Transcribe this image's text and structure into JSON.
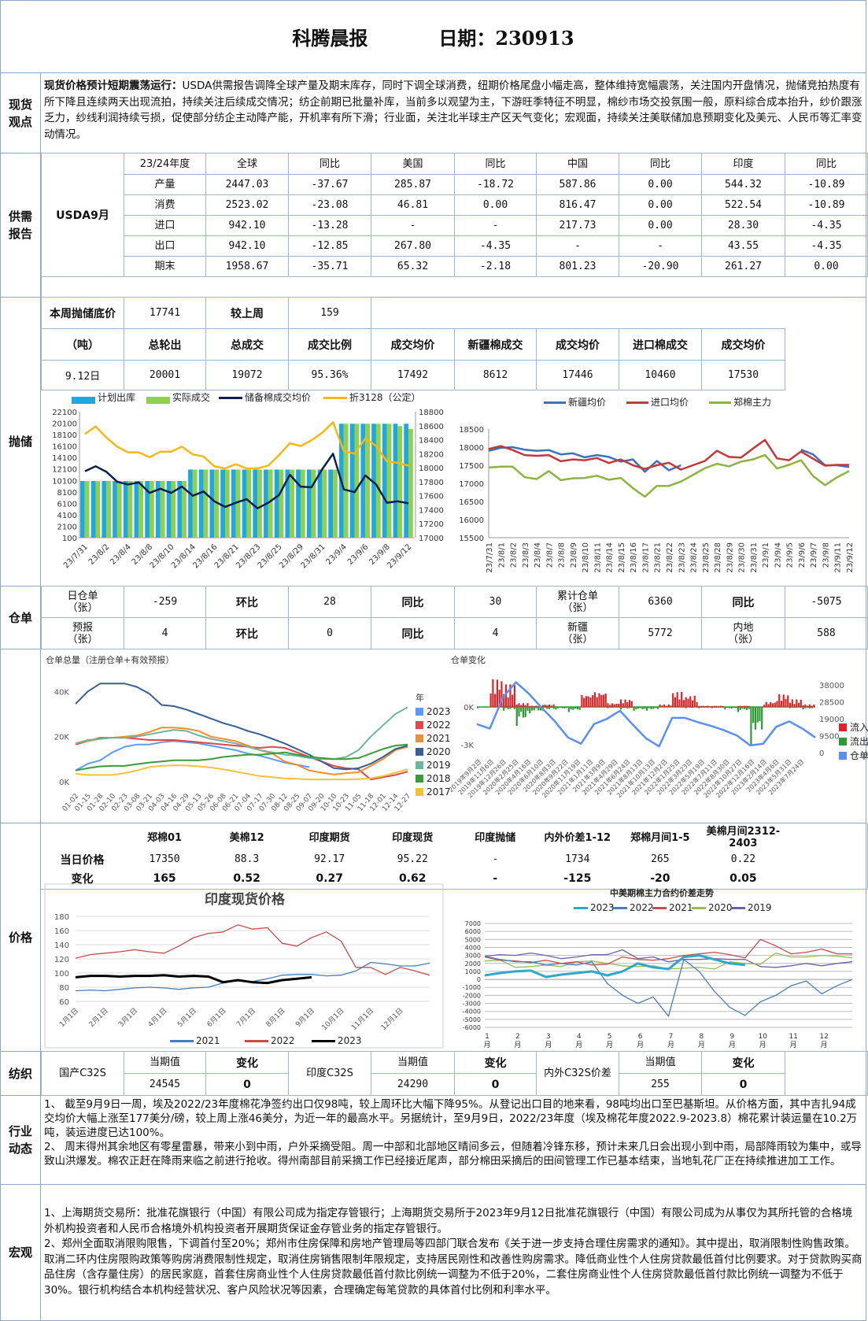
{
  "header": {
    "title": "科腾晨报",
    "date": "日期：230913"
  },
  "labels": {
    "view": "现货\n观点",
    "supply": "供需\n报告",
    "reserve": "抛储",
    "warehouse": "仓单",
    "price": "价格",
    "textile": "纺织",
    "industry": "行业\n动态",
    "macro": "宏观"
  },
  "view": {
    "lead": "现货价格预计短期震荡运行：",
    "text": "USDA供需报告调降全球产量及期末库存，同时下调全球消费，纽期价格尾盘小幅走高，整体维持宽幅震荡，关注国内开盘情况，抛储竞拍热度有所下降且连续两天出现流拍，持续关注后续成交情况；纺企前期已批量补库，当前多以观望为主，下游旺季特征不明显，棉纱市场交投氛围一般，原料综合成本抬升，纱价跟涨乏力，纱线利润持续亏损，促使部分纺企主动降产能，开机率有所下滑；行业面，关注北半球主产区天气变化；宏观面，持续关注美联储加息预期变化及美元、人民币等汇率变动情况。"
  },
  "supply": {
    "source": "USDA9月",
    "headers": [
      "23/24年度",
      "全球",
      "同比",
      "美国",
      "同比",
      "中国",
      "同比",
      "印度",
      "同比"
    ],
    "rows": [
      [
        "产量",
        "2447.03",
        "-37.67",
        "285.87",
        "-18.72",
        "587.86",
        "0.00",
        "544.32",
        "-10.89"
      ],
      [
        "消费",
        "2523.02",
        "-23.08",
        "46.81",
        "0.00",
        "816.47",
        "0.00",
        "522.54",
        "-10.89"
      ],
      [
        "进口",
        "942.10",
        "-13.28",
        "-",
        "-",
        "217.73",
        "0.00",
        "28.30",
        "-4.35"
      ],
      [
        "出口",
        "942.10",
        "-12.85",
        "267.80",
        "-4.35",
        "-",
        "-",
        "43.55",
        "-4.35"
      ],
      [
        "期末",
        "1958.67",
        "-35.71",
        "65.32",
        "-2.18",
        "801.23",
        "-20.90",
        "261.27",
        "0.00"
      ]
    ]
  },
  "reserve": {
    "floor_label": "本周抛储底价",
    "floor": "17741",
    "vs_label": "较上周",
    "vs": "159",
    "headers": [
      "（吨）",
      "总轮出",
      "总成交",
      "成交比例",
      "成交均价",
      "新疆棉成交",
      "成交均价",
      "进口棉成交",
      "成交均价"
    ],
    "row": [
      "9.12日",
      "20001",
      "19072",
      "95.36%",
      "17492",
      "8612",
      "17446",
      "10460",
      "17530"
    ]
  },
  "warehouse": {
    "r1": [
      "日仓单\n（张）",
      "-259",
      "环比",
      "28",
      "同比",
      "30",
      "累计仓单\n（张）",
      "6360",
      "同比",
      "-5075"
    ],
    "r2": [
      "预报\n（张）",
      "4",
      "环比",
      "0",
      "同比",
      "4",
      "新疆\n（张）",
      "5772",
      "内地\n（张）",
      "588"
    ]
  },
  "price": {
    "headers": [
      "",
      "郑棉01",
      "美棉12",
      "印度期货",
      "印度现货",
      "印度抛储",
      "内外价差1-12",
      "郑棉月间1-5",
      "美棉月间2312-2403"
    ],
    "today": [
      "当日价格",
      "17350",
      "88.3",
      "92.17",
      "95.22",
      "-",
      "1734",
      "265",
      "0.22"
    ],
    "change": [
      "变化",
      "165",
      "0.52",
      "0.27",
      "0.62",
      "-",
      "-125",
      "-20",
      "0.05"
    ]
  },
  "textile": {
    "items": [
      {
        "name": "国产C32S",
        "cur_label": "当期值",
        "chg_label": "变化",
        "cur": "24545",
        "chg": "0"
      },
      {
        "name": "印度C32S",
        "cur_label": "当期值",
        "chg_label": "变化",
        "cur": "24290",
        "chg": "0"
      },
      {
        "name": "内外C32S价差",
        "cur_label": "当期值",
        "chg_label": "变化",
        "cur": "255",
        "chg": "0"
      }
    ]
  },
  "industry": {
    "p1": "1、 截至9月9日一周，埃及2022/23年度棉花净签约出口仅98吨，较上周环比大幅下降95%。从登记出口目的地来看，98吨均出口至巴基斯坦。从价格方面，其中吉扎94成交均价大幅上涨至177美分/磅，较上周上涨46美分，为近一年的最高水平。另据统计，至9月9日，2022/23年度（埃及棉花年度2022.9-2023.8）棉花累计装运量在10.2万吨，装运进度已达100%。",
    "p2": "2、 周末得州其余地区有零星雷暴，带来小到中雨，户外采摘受阻。周一中部和北部地区晴间多云，但随着冷锋东移，预计未来几日会出现小到中雨，局部降雨较为集中，或导致山洪爆发。棉农正赶在降雨来临之前进行抢收。得州南部目前采摘工作已经接近尾声，部分棉田采摘后的田间管理工作已基本结束，当地轧花厂正在持续推进加工工作。"
  },
  "macro": {
    "p1": "1、上海期货交易所：批准花旗银行（中国）有限公司成为指定存管银行；上海期货交易所于2023年9月12日批准花旗银行（中国）有限公司成为从事仅为其所托管的合格境外机构投资者和人民币合格境外机构投资者开展期货保证金存管业务的指定存管银行。",
    "p2": "2、郑州全面取消限购限售，下调首付至20%；郑州市住房保障和房地产管理局等四部门联合发布《关于进一步支持合理住房需求的通知》。其中提出，取消限制性购售政策。取消二环内住房限购政策等购房消费限制性规定，取消住房销售限制年限规定，支持居民刚性和改善性购房需求。降低商业性个人住房贷款最低首付比例要求。对于贷款购买商品住房（含存量住房）的居民家庭，首套住房商业性个人住房贷款最低首付款比例统一调整为不低于20%，二套住房商业性个人住房贷款最低首付款比例统一调整为不低于30%。银行机构结合本机构经营状况、客户风险状况等因素，合理确定每笔贷款的具体首付比例和利率水平。"
  },
  "charts": {
    "reserve_auction": {
      "type": "bar",
      "legend": [
        "计划出库",
        "实际成交",
        "储备棉成交均价",
        "折3128（公定）"
      ],
      "colors": [
        "#1ea7e1",
        "#8fd14f",
        "#0d1f4f",
        "#f5b818"
      ],
      "ylim_left": [
        100,
        22100
      ],
      "ylim_right": [
        17000,
        18800
      ],
      "x_labels": [
        "23/7/31",
        "23/8/2",
        "23/8/4",
        "23/8/8",
        "23/8/10",
        "23/8/14",
        "23/8/16",
        "23/8/21",
        "23/8/23",
        "23/8/25",
        "23/8/29",
        "23/8/31",
        "23/9/4",
        "23/9/6",
        "23/9/8",
        "23/9/12"
      ],
      "planned": [
        10000,
        10000,
        10000,
        10000,
        10000,
        10000,
        10000,
        10000,
        10000,
        10000,
        12000,
        12000,
        12000,
        12000,
        12000,
        12000,
        12000,
        12000,
        12000,
        12000,
        12000,
        12000,
        12000,
        12000,
        20000,
        20000,
        20000,
        20000,
        20000,
        20000,
        20000
      ],
      "actual": [
        10000,
        10000,
        10000,
        10000,
        10000,
        10000,
        10000,
        10000,
        10000,
        10000,
        12000,
        12000,
        12000,
        12000,
        12000,
        12000,
        12000,
        12000,
        12000,
        12000,
        12000,
        12000,
        12000,
        12000,
        20000,
        20000,
        20000,
        20000,
        20000,
        19600,
        19072
      ],
      "avg_price": [
        17950,
        18020,
        17940,
        17800,
        17760,
        17790,
        17640,
        17700,
        17640,
        17730,
        17600,
        17660,
        17520,
        17440,
        17500,
        17550,
        17420,
        17500,
        17610,
        17900,
        17730,
        17720,
        17980,
        18200,
        17690,
        17650,
        17890,
        17760,
        17500,
        17520,
        17492
      ],
      "price_3128": [
        18480,
        18590,
        18430,
        18300,
        18220,
        18220,
        18150,
        18230,
        18230,
        18300,
        18190,
        18160,
        18020,
        17990,
        18050,
        17990,
        17990,
        18030,
        18180,
        18350,
        18310,
        18390,
        18500,
        18650,
        18240,
        18200,
        18420,
        18310,
        18090,
        18070,
        18030
      ]
    },
    "avg_prices": {
      "type": "line",
      "legend": [
        "新疆均价",
        "进口均价",
        "郑棉主力"
      ],
      "colors": [
        "#3f73b8",
        "#c0393b",
        "#8db43f"
      ],
      "ylim": [
        15500,
        18500
      ],
      "x": [
        "23/7/31",
        "23/8/1",
        "23/8/2",
        "23/8/3",
        "23/8/4",
        "23/8/7",
        "23/8/8",
        "23/8/9",
        "23/8/10",
        "23/8/11",
        "23/8/14",
        "23/8/15",
        "23/8/16",
        "23/8/17",
        "23/8/21",
        "23/8/22",
        "23/8/23",
        "23/8/24",
        "23/8/25",
        "23/8/28",
        "23/8/29",
        "23/8/30",
        "23/8/31",
        "23/9/1",
        "23/9/4",
        "23/9/5",
        "23/9/6",
        "23/9/7",
        "23/9/8",
        "23/9/11",
        "23/9/12"
      ],
      "series": [
        [
          17900,
          17980,
          18000,
          17930,
          17900,
          17920,
          17800,
          17830,
          17720,
          17780,
          17730,
          17600,
          17660,
          17320,
          17620,
          17360,
          17500,
          null,
          null,
          null,
          null,
          null,
          null,
          null,
          null,
          null,
          17930,
          17800,
          17500,
          17500,
          17450
        ],
        [
          17950,
          18030,
          17920,
          17780,
          17760,
          17780,
          17610,
          17660,
          17640,
          17700,
          17560,
          17660,
          17500,
          17400,
          17500,
          17570,
          17380,
          17500,
          17620,
          17900,
          17730,
          17710,
          17960,
          18200,
          17690,
          17640,
          17880,
          17680,
          17490,
          17510,
          17510
        ],
        [
          17440,
          17460,
          17460,
          17170,
          17120,
          17340,
          17090,
          17140,
          17150,
          17210,
          17100,
          17150,
          16870,
          16630,
          16930,
          16930,
          17050,
          17230,
          17420,
          17540,
          17470,
          17600,
          17660,
          17780,
          17410,
          17510,
          17640,
          17200,
          16950,
          17170,
          17340
        ]
      ]
    },
    "warehouse_total": {
      "type": "line",
      "title": "仓单总量（注册仓单+有效预报）",
      "legend_title": "年",
      "y_ticks": [
        "0K",
        "20K",
        "40K"
      ],
      "ylim": [
        0,
        45
      ],
      "x": [
        "01-02",
        "01-15",
        "01-28",
        "02-10",
        "02-23",
        "03-08",
        "03-21",
        "04-03",
        "04-16",
        "04-29",
        "05-13",
        "05-26",
        "06-08",
        "06-21",
        "07-04",
        "07-17",
        "07-30",
        "08-12",
        "08-25",
        "09-07",
        "09-20",
        "10-10",
        "10-23",
        "11-05",
        "11-18",
        "12-01",
        "12-14",
        "12-27"
      ],
      "names": [
        "2023",
        "2022",
        "2021",
        "2020",
        "2019",
        "2018",
        "2017"
      ],
      "colors": [
        "#5b9bf5",
        "#e0474c",
        "#f28e2b",
        "#3a5f95",
        "#6fb3a3",
        "#3c9a3c",
        "#f0c43a"
      ],
      "series": [
        [
          5,
          8,
          9.5,
          13,
          15.5,
          16.5,
          16.5,
          17.5,
          18,
          17.5,
          17,
          16,
          15,
          14,
          12.5,
          11.5,
          10,
          8.5,
          7.5,
          6.5
        ],
        [
          16.5,
          18,
          19.5,
          19.5,
          19.5,
          19,
          18.5,
          18.5,
          18.5,
          18,
          17.5,
          17,
          16.5,
          16,
          15.5,
          15,
          15.5,
          15,
          13,
          11,
          9,
          7,
          6,
          5.5,
          1,
          2,
          3,
          4.5
        ],
        [
          17,
          18,
          19,
          19.5,
          20,
          20.5,
          22,
          24,
          24,
          23.5,
          22.5,
          20,
          19,
          18,
          16,
          14,
          12.5,
          9,
          7.5,
          5,
          4,
          3.2,
          3.8,
          4.2,
          7,
          10,
          14,
          15.5
        ],
        [
          34.5,
          40,
          43.5,
          43.5,
          43.5,
          42,
          39,
          34,
          33.5,
          32,
          30,
          28,
          26,
          24.5,
          22.5,
          21,
          19,
          17,
          14.5,
          12,
          9,
          6,
          5.5,
          6,
          8,
          11,
          14.5,
          16
        ],
        [
          17,
          18.5,
          19,
          19.5,
          19.5,
          20,
          21,
          22,
          23,
          22.5,
          20.5,
          19,
          18,
          17,
          15.5,
          14,
          13,
          12,
          11.5,
          10.5,
          10,
          10,
          11,
          14,
          20,
          25,
          30,
          33
        ],
        [
          5,
          6,
          6.8,
          7,
          7,
          7.8,
          8.5,
          9,
          9.5,
          9.5,
          9.5,
          10,
          11,
          11.5,
          12,
          12,
          12.5,
          13,
          12,
          11,
          10.5,
          10,
          10,
          10.5,
          12.5,
          14.5,
          16,
          16.5
        ],
        [
          3.5,
          3,
          3,
          3,
          3.8,
          5,
          6.5,
          7,
          7.3,
          7.2,
          6.8,
          6.3,
          5.5,
          4.5,
          3.5,
          2.5,
          2,
          1.5,
          1.3,
          1,
          1,
          1,
          1,
          1.2,
          1.5,
          2.5,
          4,
          5.5
        ]
      ]
    },
    "warehouse_change": {
      "type": "bar",
      "title": "仓单变化",
      "legend": [
        "流入",
        "流出",
        "仓单"
      ],
      "colors": [
        "#d9262c",
        "#2e9a35",
        "#5b8ff0"
      ],
      "left_ticks": [
        "0K",
        "-3K"
      ],
      "right_ticks": [
        "38000",
        "28500",
        "19000",
        "9500",
        "0"
      ],
      "ylim_right": [
        0,
        38000
      ],
      "x": [
        "2019年9月2日",
        "2019年11月6日",
        "2019年12月26日",
        "2020年2月25日",
        "2020年4月16日",
        "2020年6月10日",
        "2020年8月3日",
        "2020年9月22日",
        "2020年11月19日",
        "2021年1月11日",
        "2021年3月9日",
        "2021年4月29日",
        "2021年6月24日",
        "2021年8月13日",
        "2021年10月13日",
        "2021年12月2日",
        "2022年1月25日",
        "2022年3月23日",
        "2022年5月19日",
        "2022年7月11日",
        "2022年8月30日",
        "2022年10月27日",
        "2022年12月16日",
        "2023年2月14日",
        "2023年4月6日",
        "2023年5月31日",
        "2023年7月24日"
      ],
      "inflow": [
        0,
        2.2,
        1.8,
        0.3,
        0.1,
        0.2,
        0,
        0,
        1,
        1.2,
        0.3,
        0.6,
        0,
        0,
        0.2,
        1.2,
        0.9,
        0.1,
        0.1,
        0,
        0.1,
        0,
        0.4,
        1,
        0.6,
        0.2,
        0
      ],
      "outflow": [
        -0.1,
        0,
        -0.3,
        -1.5,
        -0.5,
        -0.3,
        -0.2,
        -0.4,
        0,
        0,
        -0.1,
        -0.2,
        -0.3,
        -0.3,
        0,
        0,
        -0.1,
        -0.1,
        -0.1,
        -0.2,
        -0.4,
        -3,
        0,
        0,
        -0.1,
        -0.2,
        -0.1
      ],
      "stock": [
        16000,
        13500,
        31000,
        39500,
        33000,
        25000,
        17500,
        8500,
        5000,
        16000,
        19000,
        23500,
        15500,
        8000,
        3500,
        19500,
        19500,
        17000,
        15000,
        12500,
        9500,
        4000,
        5000,
        14500,
        17500,
        13500,
        8500
      ]
    },
    "india_spot": {
      "type": "line",
      "title": "印度现货价格",
      "ylim": [
        60,
        180
      ],
      "y_ticks": [
        60,
        80,
        100,
        120,
        140,
        160,
        180
      ],
      "x_labels": [
        "1月1日",
        "2月1日",
        "3月1日",
        "4月1日",
        "5月1日",
        "6月1日",
        "7月1日",
        "8月1日",
        "9月1日",
        "10月1日",
        "11月1日",
        "12月1日"
      ],
      "names": [
        "2021",
        "2022",
        "2023"
      ],
      "colors": [
        "#4a7ebb",
        "#c0504d",
        "#000000"
      ],
      "series": [
        [
          75,
          76,
          75,
          77,
          79,
          80,
          79,
          77,
          79,
          80,
          86,
          89,
          88,
          92,
          97,
          98,
          98,
          96,
          97,
          103,
          115,
          113,
          110,
          110,
          114
        ],
        [
          121,
          126,
          128,
          130,
          133,
          130,
          128,
          138,
          150,
          156,
          158,
          168,
          162,
          164,
          142,
          138,
          150,
          158,
          145,
          108,
          108,
          98,
          108,
          103,
          97
        ],
        [
          94,
          96,
          96,
          95,
          96,
          96,
          97,
          95,
          96,
          95,
          87,
          90,
          87,
          86,
          90,
          92,
          94
        ]
      ]
    },
    "cn_us_spread": {
      "type": "line",
      "title": "中美期棉主力合约价差走势",
      "ylim": [
        -6000,
        7000
      ],
      "x_labels": [
        "1\n月",
        "2\n月",
        "3\n月",
        "4\n月",
        "5\n月",
        "6\n月",
        "7\n月",
        "8\n月",
        "9\n月",
        "10\n月",
        "11\n月",
        "12\n月"
      ],
      "names": [
        "2023",
        "2022",
        "2021",
        "2020",
        "2019"
      ],
      "colors": [
        "#2fa9c8",
        "#4a7ebb",
        "#c0504d",
        "#9bbb59",
        "#7060a8"
      ],
      "series": [
        [
          500,
          800,
          1000,
          1100,
          300,
          600,
          800,
          1000,
          500,
          1000,
          2000,
          1500,
          1300,
          2800,
          3000,
          2500,
          2000,
          1800
        ],
        [
          2900,
          2500,
          2200,
          2200,
          1800,
          2000,
          1800,
          2200,
          -500,
          -2000,
          -3000,
          -2200,
          -4600,
          2500,
          1000,
          -1500,
          -3500,
          -4500,
          -2800,
          -2000,
          -800,
          -200,
          -1800,
          -800,
          0
        ],
        [
          2800,
          2400,
          2300,
          2100,
          2400,
          2000,
          2200,
          1800,
          1900,
          2800,
          2500,
          2400,
          2600,
          3000,
          3200,
          3400,
          3100,
          2700,
          5000,
          4200,
          3200,
          3400,
          3800,
          3200,
          3200
        ],
        [
          2300,
          2400,
          1500,
          1600,
          1800,
          1600,
          2200,
          2300,
          2000,
          1700,
          1600,
          1700,
          1300,
          1400,
          1500,
          1300,
          2200,
          2000,
          1900,
          3300,
          2800,
          2800,
          3000,
          2900,
          2700
        ],
        [
          2900,
          3100,
          3000,
          3300,
          3000,
          2600,
          2800,
          3100,
          3100,
          3700,
          2600,
          2800,
          2200,
          2500,
          2500,
          2600,
          2500,
          2500,
          1600,
          1500,
          1700,
          2000,
          1700,
          2000,
          2200
        ]
      ]
    }
  }
}
